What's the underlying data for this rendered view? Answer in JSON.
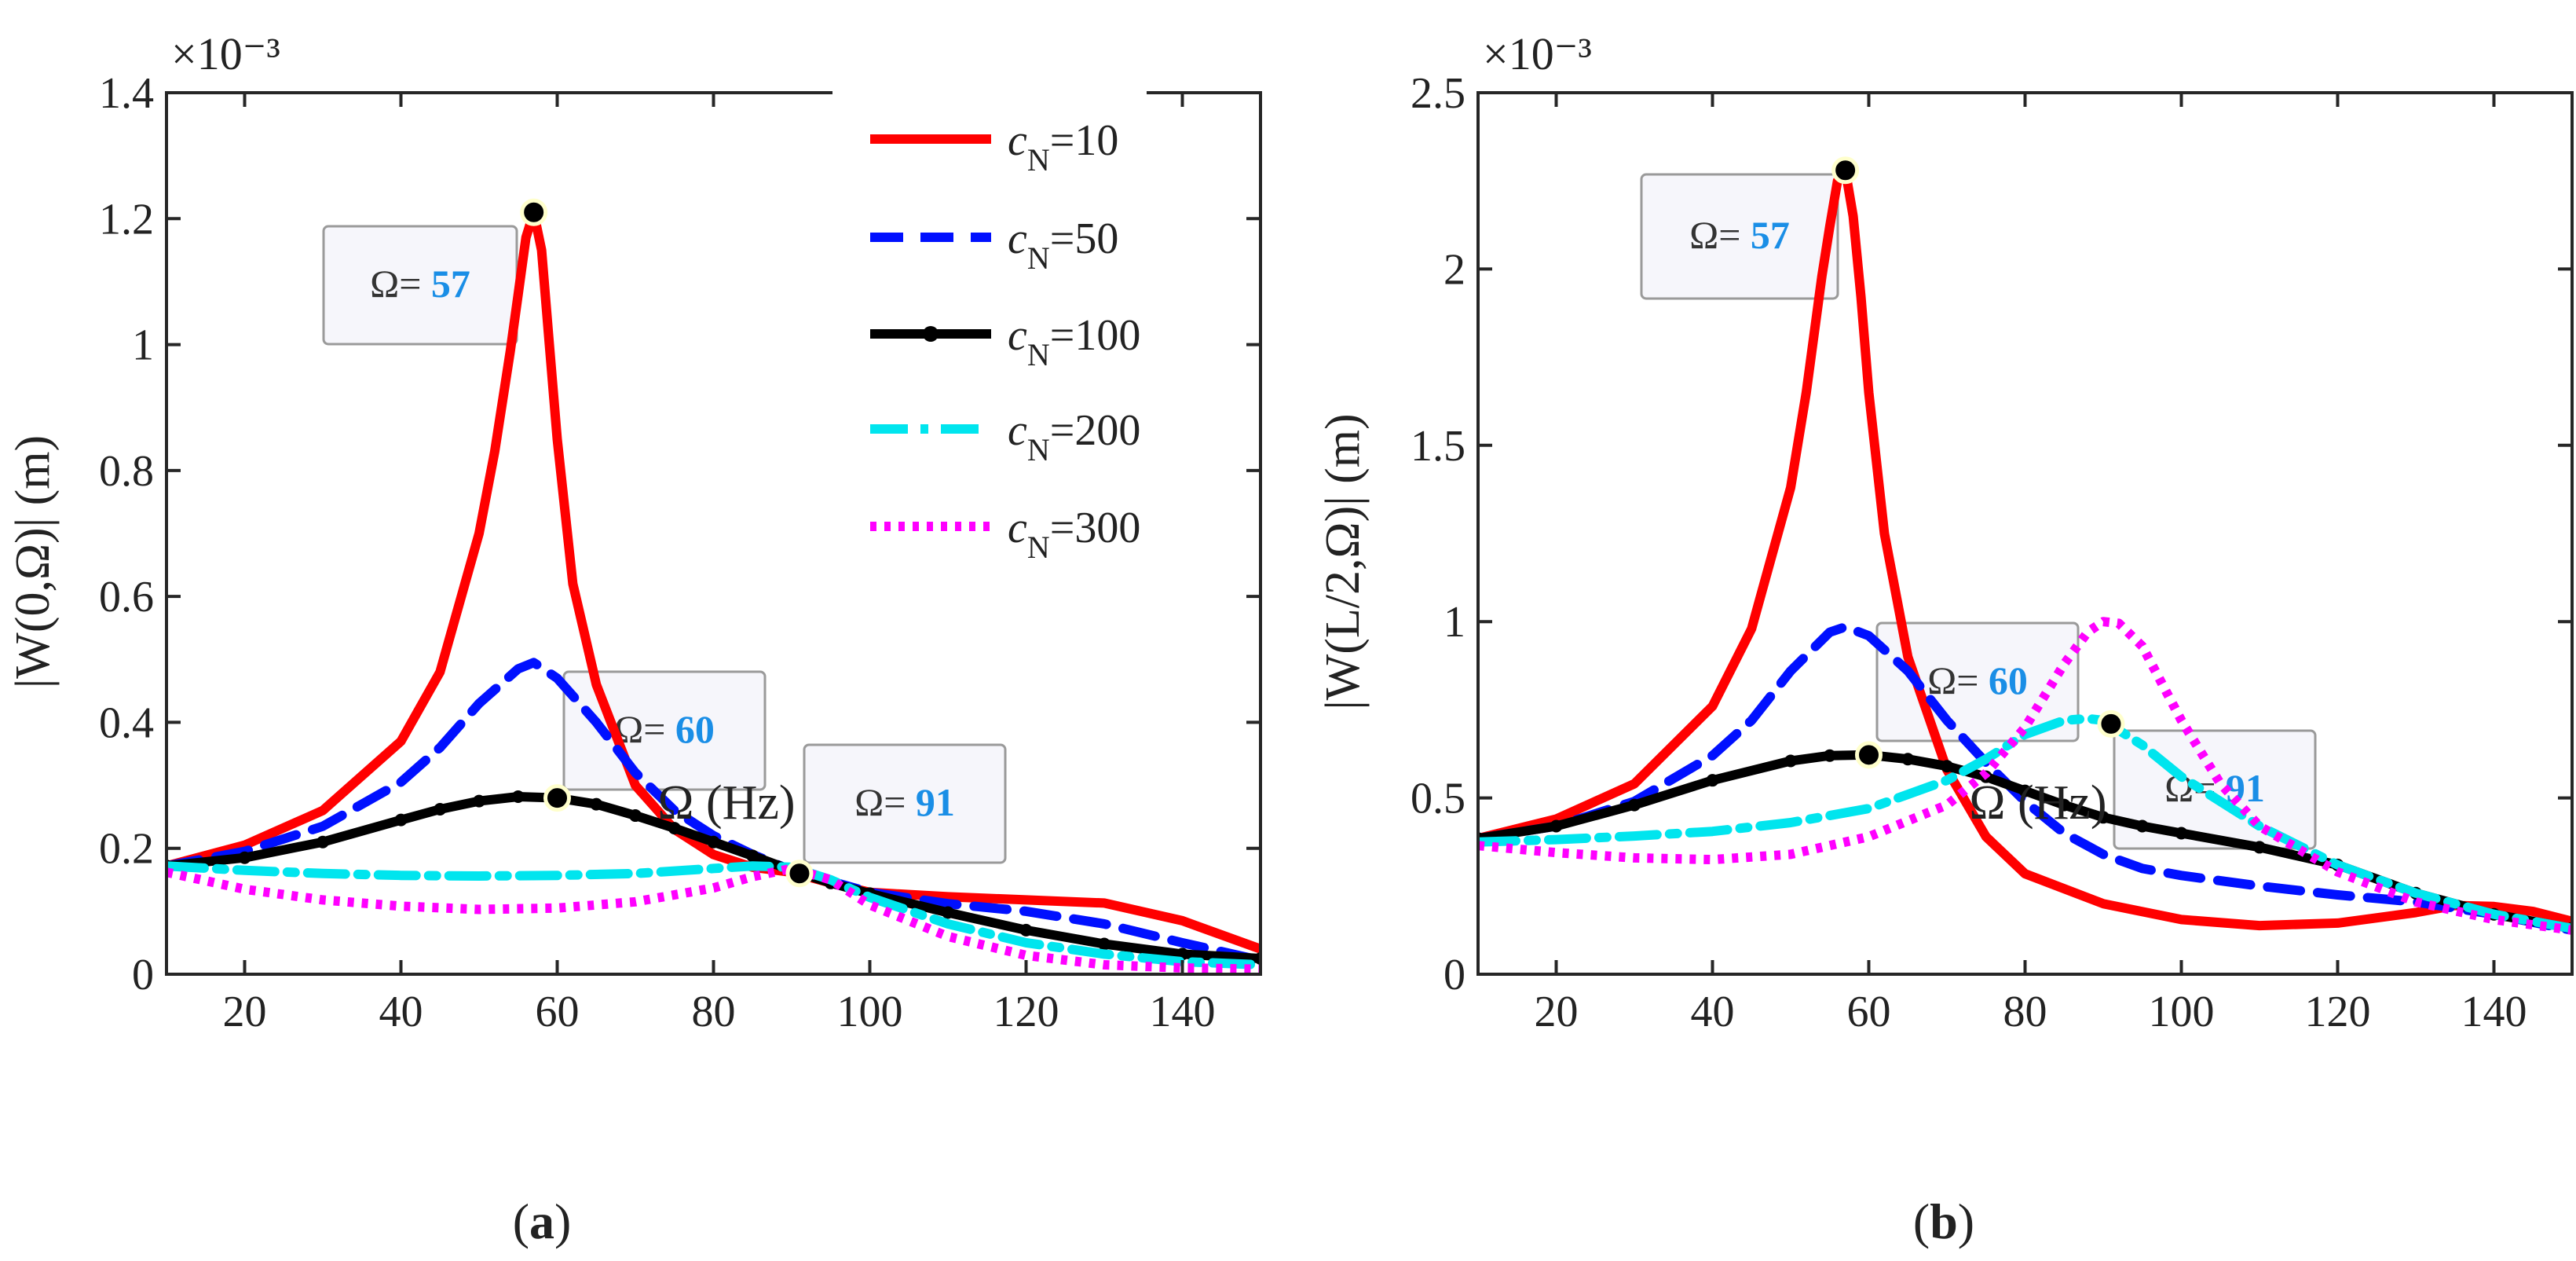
{
  "chart_data": [
    {
      "type": "line",
      "panel_label_prefix": "(",
      "panel_label": "a",
      "panel_label_suffix": ")",
      "xlabel": "Ω (Hz)",
      "ylabel": "|W(0,Ω)| (m)",
      "y_exponent": "×10⁻³",
      "xlim": [
        10,
        150
      ],
      "ylim": [
        0,
        1.4
      ],
      "xticks": [
        20,
        40,
        60,
        80,
        100,
        120,
        140
      ],
      "yticks": [
        0,
        0.2,
        0.4,
        0.6,
        0.8,
        1,
        1.2,
        1.4
      ],
      "yticklabels": [
        "0",
        "0.2",
        "0.4",
        "0.6",
        "0.8",
        "1",
        "1.2",
        "1.4"
      ],
      "legend": "top-right",
      "series": [
        {
          "name": "c_N=10",
          "legend_var": "c",
          "legend_sub": "N",
          "legend_val": "=10",
          "color": "#ff0000",
          "style": "solid",
          "x": [
            10,
            20,
            30,
            40,
            45,
            50,
            52,
            54,
            55,
            56,
            57,
            58,
            59,
            60,
            62,
            65,
            70,
            75,
            80,
            85,
            90,
            95,
            100,
            110,
            120,
            130,
            140,
            150
          ],
          "y": [
            0.172,
            0.205,
            0.26,
            0.37,
            0.48,
            0.7,
            0.83,
            0.99,
            1.08,
            1.17,
            1.21,
            1.15,
            1.0,
            0.85,
            0.62,
            0.46,
            0.3,
            0.23,
            0.19,
            0.17,
            0.162,
            0.145,
            0.13,
            0.123,
            0.118,
            0.113,
            0.085,
            0.04
          ]
        },
        {
          "name": "c_N=50",
          "legend_var": "c",
          "legend_sub": "N",
          "legend_val": "=50",
          "color": "#0010ff",
          "style": "dashed",
          "x": [
            10,
            20,
            30,
            40,
            45,
            50,
            55,
            57,
            60,
            65,
            70,
            75,
            80,
            85,
            90,
            100,
            110,
            120,
            130,
            140,
            150
          ],
          "y": [
            0.172,
            0.195,
            0.235,
            0.305,
            0.36,
            0.43,
            0.485,
            0.495,
            0.47,
            0.4,
            0.32,
            0.26,
            0.22,
            0.19,
            0.165,
            0.13,
            0.112,
            0.1,
            0.08,
            0.05,
            0.022
          ]
        },
        {
          "name": "c_N=100",
          "legend_var": "c",
          "legend_sub": "N",
          "legend_val": "=100",
          "color": "#000000",
          "style": "dotline",
          "x": [
            10,
            20,
            30,
            40,
            45,
            50,
            55,
            60,
            65,
            70,
            75,
            80,
            85,
            90,
            95,
            100,
            110,
            120,
            130,
            140,
            150
          ],
          "y": [
            0.172,
            0.185,
            0.21,
            0.245,
            0.262,
            0.275,
            0.282,
            0.28,
            0.27,
            0.252,
            0.232,
            0.21,
            0.188,
            0.165,
            0.145,
            0.128,
            0.098,
            0.07,
            0.048,
            0.032,
            0.025
          ]
        },
        {
          "name": "c_N=200",
          "legend_var": "c",
          "legend_sub": "N",
          "legend_val": "=200",
          "color": "#00e5ee",
          "style": "dashdot",
          "x": [
            10,
            20,
            30,
            40,
            50,
            60,
            70,
            80,
            85,
            90,
            95,
            100,
            110,
            120,
            130,
            140,
            150
          ],
          "y": [
            0.172,
            0.165,
            0.16,
            0.157,
            0.156,
            0.157,
            0.16,
            0.168,
            0.172,
            0.17,
            0.15,
            0.122,
            0.08,
            0.05,
            0.032,
            0.02,
            0.015
          ]
        },
        {
          "name": "c_N=300",
          "legend_var": "c",
          "legend_sub": "N",
          "legend_val": "=300",
          "color": "#ff00ff",
          "style": "dotted",
          "x": [
            10,
            20,
            30,
            40,
            50,
            60,
            70,
            80,
            85,
            90,
            95,
            100,
            110,
            120,
            130,
            140,
            150
          ],
          "y": [
            0.162,
            0.135,
            0.118,
            0.108,
            0.103,
            0.105,
            0.115,
            0.137,
            0.155,
            0.168,
            0.15,
            0.11,
            0.06,
            0.03,
            0.015,
            0.01,
            0.008
          ]
        }
      ],
      "markers": [
        {
          "x": 57,
          "y": 1.21
        },
        {
          "x": 60,
          "y": 0.28
        },
        {
          "x": 91,
          "y": 0.16
        }
      ],
      "datatips": [
        {
          "title": "Ω= ",
          "value": "57"
        },
        {
          "title": "Ω= ",
          "value": "60"
        },
        {
          "title": "Ω= ",
          "value": "91"
        }
      ]
    },
    {
      "type": "line",
      "panel_label_prefix": "(",
      "panel_label": "b",
      "panel_label_suffix": ")",
      "xlabel": "Ω (Hz)",
      "ylabel": "|W(L/2,Ω)| (m)",
      "y_exponent": "×10⁻³",
      "xlim": [
        10,
        150
      ],
      "ylim": [
        0,
        2.5
      ],
      "xticks": [
        20,
        40,
        60,
        80,
        100,
        120,
        140
      ],
      "yticks": [
        0,
        0.5,
        1,
        1.5,
        2,
        2.5
      ],
      "yticklabels": [
        "0",
        "0.5",
        "1",
        "1.5",
        "2",
        "2.5"
      ],
      "series": [
        {
          "name": "c_N=10",
          "color": "#ff0000",
          "style": "solid",
          "x": [
            10,
            20,
            30,
            40,
            45,
            50,
            52,
            54,
            55,
            56,
            57,
            58,
            59,
            60,
            62,
            65,
            70,
            75,
            80,
            90,
            100,
            110,
            120,
            130,
            135,
            140,
            145,
            150
          ],
          "y": [
            0.385,
            0.44,
            0.54,
            0.76,
            0.98,
            1.38,
            1.65,
            1.98,
            2.12,
            2.25,
            2.28,
            2.15,
            1.92,
            1.65,
            1.25,
            0.9,
            0.58,
            0.39,
            0.285,
            0.2,
            0.155,
            0.138,
            0.145,
            0.175,
            0.195,
            0.192,
            0.178,
            0.15
          ]
        },
        {
          "name": "c_N=50",
          "color": "#0010ff",
          "style": "dashed",
          "x": [
            10,
            20,
            30,
            40,
            45,
            50,
            55,
            57,
            60,
            65,
            70,
            75,
            80,
            85,
            90,
            95,
            100,
            110,
            120,
            130,
            140,
            150
          ],
          "y": [
            0.385,
            0.42,
            0.49,
            0.62,
            0.72,
            0.86,
            0.97,
            0.985,
            0.96,
            0.86,
            0.72,
            0.6,
            0.49,
            0.4,
            0.34,
            0.3,
            0.28,
            0.25,
            0.225,
            0.205,
            0.17,
            0.125
          ]
        },
        {
          "name": "c_N=100",
          "color": "#000000",
          "style": "dotline",
          "x": [
            10,
            20,
            30,
            40,
            50,
            55,
            60,
            65,
            70,
            75,
            80,
            85,
            90,
            95,
            100,
            110,
            120,
            130,
            140,
            150
          ],
          "y": [
            0.385,
            0.42,
            0.48,
            0.55,
            0.605,
            0.62,
            0.622,
            0.61,
            0.59,
            0.56,
            0.52,
            0.48,
            0.445,
            0.42,
            0.4,
            0.36,
            0.31,
            0.23,
            0.17,
            0.13
          ]
        },
        {
          "name": "c_N=200",
          "color": "#00e5ee",
          "style": "dashdot",
          "x": [
            10,
            20,
            30,
            40,
            50,
            60,
            70,
            75,
            80,
            85,
            88,
            90,
            95,
            100,
            110,
            120,
            130,
            140,
            150
          ],
          "y": [
            0.375,
            0.382,
            0.392,
            0.405,
            0.43,
            0.47,
            0.55,
            0.61,
            0.68,
            0.72,
            0.725,
            0.72,
            0.65,
            0.56,
            0.42,
            0.31,
            0.23,
            0.17,
            0.13
          ]
        },
        {
          "name": "c_N=300",
          "color": "#ff00ff",
          "style": "dotted",
          "x": [
            10,
            20,
            30,
            40,
            50,
            60,
            70,
            75,
            80,
            85,
            88,
            90,
            92,
            95,
            100,
            105,
            110,
            120,
            130,
            140,
            150
          ],
          "y": [
            0.365,
            0.345,
            0.33,
            0.325,
            0.34,
            0.39,
            0.48,
            0.57,
            0.7,
            0.88,
            0.97,
            1.0,
            0.995,
            0.93,
            0.72,
            0.54,
            0.42,
            0.29,
            0.205,
            0.155,
            0.125
          ]
        }
      ],
      "markers": [
        {
          "x": 57,
          "y": 2.28
        },
        {
          "x": 60,
          "y": 0.622
        },
        {
          "x": 91,
          "y": 0.71
        }
      ],
      "datatips": [
        {
          "title": "Ω= ",
          "value": "57"
        },
        {
          "title": "Ω= ",
          "value": "60"
        },
        {
          "title": "Ω= ",
          "value": "91"
        }
      ]
    }
  ],
  "colors": {
    "datatip_value": "#1a8ee6",
    "datatip_bg": "#f6f6fb",
    "datatip_border": "#9a9a9a",
    "marker_fill": "#000000",
    "marker_ring": "#ffffcc"
  }
}
